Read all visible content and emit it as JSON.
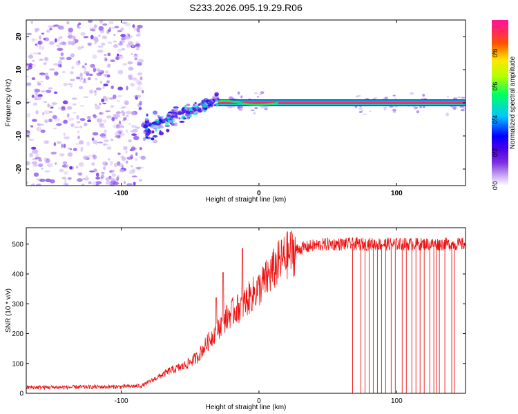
{
  "figure_title": "S233.2026.095.19.29.R06",
  "chart_data": [
    {
      "type": "heatmap",
      "title": "S233.2026.095.19.29.R06",
      "xlabel": "Height of straight line (km)",
      "ylabel": "Frequency (Hz)",
      "xlim": [
        -169,
        150
      ],
      "ylim": [
        -25,
        25
      ],
      "xticks": [
        -100,
        0,
        100
      ],
      "xtick_labels": [
        "-100",
        "0",
        "100"
      ],
      "yticks": [
        20,
        10,
        0,
        -10,
        -20
      ],
      "ytick_labels": [
        "20",
        "10",
        "0",
        "-10",
        "-20"
      ],
      "colorbar": {
        "label": "Normalized spectral amplitude",
        "range": [
          0,
          1
        ],
        "ticks": [
          0,
          0.2,
          0.4,
          0.6,
          0.8
        ],
        "tick_labels": [
          "0.0",
          "0.2",
          "0.4",
          "0.6",
          "0.8"
        ],
        "colormap": [
          "#ffffff",
          "#c9a8f5",
          "#7a2fe0",
          "#4b00e6",
          "#0000ff",
          "#00c8ff",
          "#00ff60",
          "#b4ff00",
          "#ffe600",
          "#ff5000",
          "#ff2a60",
          "#ff1493"
        ]
      },
      "regions": [
        {
          "x_range": [
            -169,
            -84
          ],
          "freq_range": [
            -25,
            25
          ],
          "pattern": "broadband noise",
          "amplitude": 0.15
        },
        {
          "x_range": [
            -84,
            -30
          ],
          "freq_center_start": -8,
          "freq_center_end": 1,
          "pattern": "rising chirp",
          "amplitude": 0.35
        },
        {
          "x_range": [
            -30,
            150
          ],
          "freq_center": 0,
          "pattern": "narrow carrier line",
          "amplitude": 0.9
        }
      ]
    },
    {
      "type": "line",
      "title": "",
      "xlabel": "Height of straight line (km)",
      "ylabel": "SNR (10 * v/v)",
      "xlim": [
        -169,
        150
      ],
      "ylim": [
        0,
        555
      ],
      "xticks": [
        -100,
        0,
        100
      ],
      "xtick_labels": [
        "-100",
        "0",
        "100"
      ],
      "yticks": [
        0,
        100,
        200,
        300,
        400,
        500
      ],
      "ytick_labels": [
        "0",
        "100",
        "200",
        "300",
        "400",
        "500"
      ],
      "color": "#ee1111",
      "x": [
        -169,
        -150,
        -125,
        -100,
        -85,
        -75,
        -65,
        -55,
        -45,
        -35,
        -25,
        -20,
        -15,
        -10,
        -5,
        0,
        5,
        10,
        15,
        20,
        25,
        30,
        40,
        50,
        60,
        70,
        80,
        90,
        100,
        110,
        120,
        130,
        140,
        150
      ],
      "y": [
        20,
        20,
        21,
        22,
        25,
        50,
        75,
        90,
        120,
        185,
        245,
        270,
        285,
        305,
        330,
        350,
        380,
        410,
        440,
        460,
        475,
        485,
        495,
        500,
        500,
        500,
        500,
        500,
        500,
        500,
        500,
        500,
        500,
        500
      ],
      "dropouts_x": [
        68,
        74,
        77,
        80,
        83,
        86,
        89,
        92,
        96,
        99,
        104,
        107,
        111,
        114,
        117,
        120,
        124,
        127,
        129,
        131,
        135,
        140,
        142
      ],
      "spikes": [
        {
          "x": -12,
          "y": 485
        },
        {
          "x": -26,
          "y": 405
        },
        {
          "x": -31,
          "y": 320
        }
      ]
    }
  ]
}
